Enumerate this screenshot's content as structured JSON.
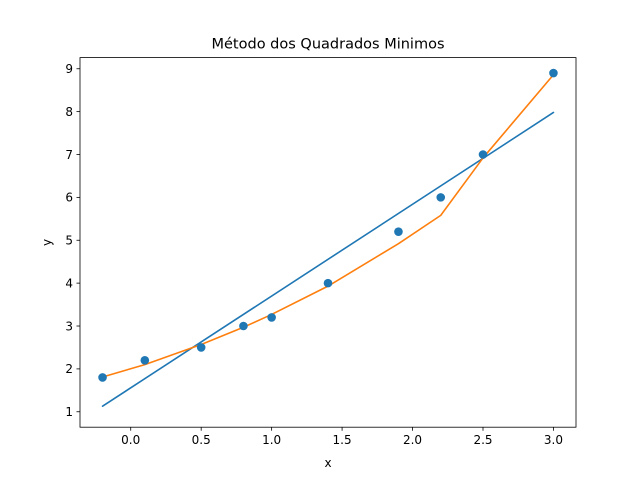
{
  "chart_data": {
    "type": "scatter",
    "title": "Método dos Quadrados Minimos",
    "xlabel": "x",
    "ylabel": "y",
    "xlim": [
      -0.36,
      3.16
    ],
    "ylim": [
      0.64,
      9.26
    ],
    "xticks": [
      0.0,
      0.5,
      1.0,
      1.5,
      2.0,
      2.5,
      3.0
    ],
    "xtick_labels": [
      "0.0",
      "0.5",
      "1.0",
      "1.5",
      "2.0",
      "2.5",
      "3.0"
    ],
    "yticks": [
      1,
      2,
      3,
      4,
      5,
      6,
      7,
      8,
      9
    ],
    "ytick_labels": [
      "1",
      "2",
      "3",
      "4",
      "5",
      "6",
      "7",
      "8",
      "9"
    ],
    "grid": false,
    "legend": "none",
    "points": {
      "color": "#1f77b4",
      "x": [
        -0.2,
        0.1,
        0.5,
        0.8,
        1.0,
        1.4,
        1.9,
        2.2,
        2.5,
        3.0
      ],
      "y": [
        1.8,
        2.2,
        2.5,
        3.0,
        3.2,
        4.0,
        5.2,
        6.0,
        7.0,
        8.9
      ]
    },
    "series": [
      {
        "type": "line",
        "color": "#1f77b4",
        "x": [
          -0.2,
          3.0
        ],
        "y": [
          1.13,
          7.98
        ]
      },
      {
        "type": "line",
        "color": "#ff7f0e",
        "x": [
          -0.2,
          0.1,
          0.5,
          0.8,
          1.0,
          1.4,
          1.9,
          2.2,
          2.5,
          3.0
        ],
        "y": [
          1.81,
          2.1,
          2.57,
          2.97,
          3.27,
          3.93,
          4.92,
          5.58,
          6.92,
          8.86
        ]
      }
    ]
  }
}
